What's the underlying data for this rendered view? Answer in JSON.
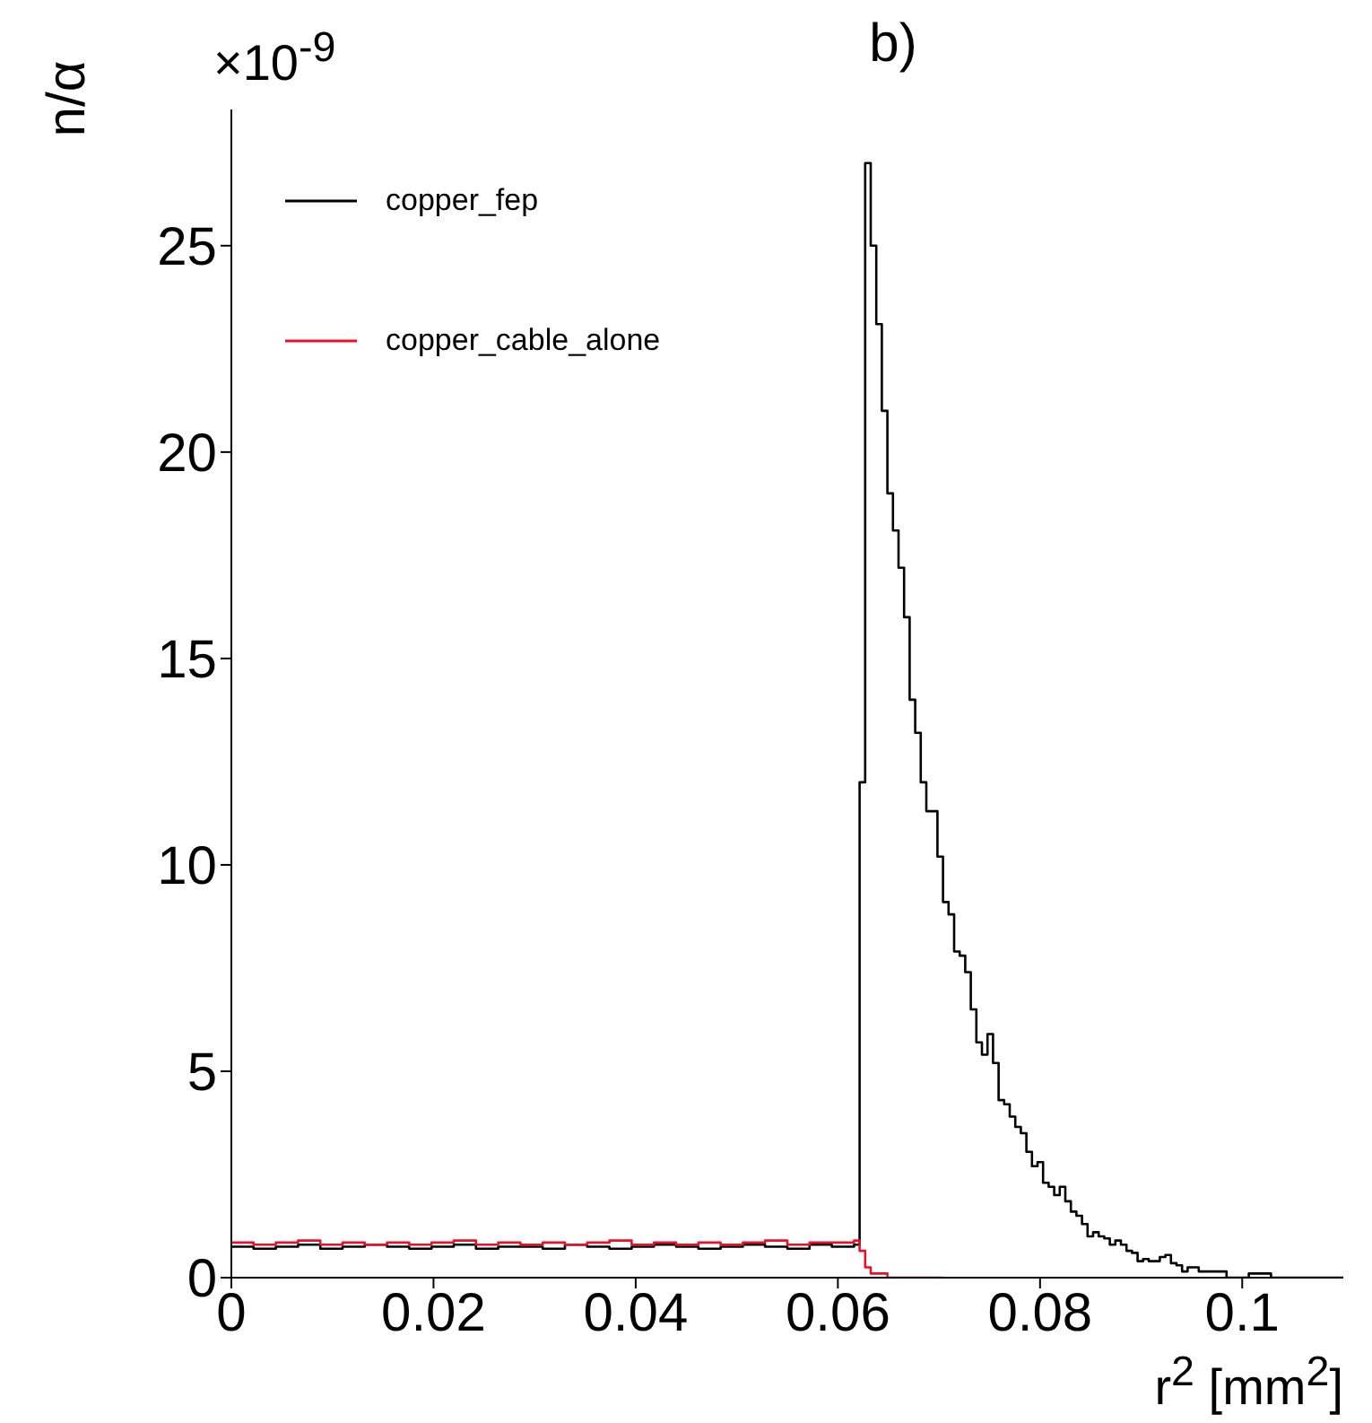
{
  "chart_data": {
    "type": "histogram",
    "title": "b)",
    "xlabel": "r$^{2}$ [mm$^{2}$]",
    "ylabel": "n/α",
    "annotations": [
      "×10$^{-9}$"
    ],
    "bins": [
      0,
      0.0022,
      0.0044,
      0.0066,
      0.0088,
      0.011,
      0.0132,
      0.0154,
      0.0176,
      0.0198,
      0.022,
      0.0242,
      0.0264,
      0.0286,
      0.0308,
      0.033,
      0.0352,
      0.0374,
      0.0396,
      0.0418,
      0.044,
      0.0462,
      0.0484,
      0.0506,
      0.0528,
      0.055,
      0.0572,
      0.0594,
      0.0616,
      0.06215,
      0.0627,
      0.06325,
      0.0638,
      0.06435,
      0.0649,
      0.06545,
      0.066,
      0.06655,
      0.0671,
      0.06765,
      0.0682,
      0.06875,
      0.0693,
      0.06985,
      0.0704,
      0.07095,
      0.0715,
      0.07205,
      0.0726,
      0.07315,
      0.0737,
      0.07425,
      0.0748,
      0.07535,
      0.0759,
      0.07645,
      0.077,
      0.07755,
      0.0781,
      0.07865,
      0.0792,
      0.07975,
      0.0803,
      0.08085,
      0.0814,
      0.08195,
      0.0825,
      0.08305,
      0.0836,
      0.08415,
      0.0847,
      0.08525,
      0.0858,
      0.08635,
      0.0869,
      0.08745,
      0.088,
      0.08855,
      0.0891,
      0.08965,
      0.0902,
      0.09075,
      0.0913,
      0.09185,
      0.0924,
      0.09295,
      0.0935,
      0.09405,
      0.0946,
      0.09515,
      0.0957,
      0.09625,
      0.0968,
      0.09735,
      0.0979,
      0.09845,
      0.099,
      0.09955,
      0.1001,
      0.10065,
      0.1012,
      0.10175,
      0.1023,
      0.10285,
      0.11
    ],
    "series": [
      {
        "name": "copper_fep",
        "color": "#000000",
        "values": [
          0.75,
          0.7,
          0.75,
          0.8,
          0.7,
          0.75,
          0.8,
          0.75,
          0.7,
          0.75,
          0.8,
          0.7,
          0.75,
          0.75,
          0.7,
          0.8,
          0.75,
          0.7,
          0.75,
          0.8,
          0.75,
          0.7,
          0.75,
          0.8,
          0.75,
          0.7,
          0.8,
          0.75,
          0.8,
          12.0,
          27.0,
          25.0,
          23.1,
          21.0,
          19.0,
          18.1,
          17.2,
          16.0,
          14.0,
          13.2,
          12.0,
          11.3,
          11.3,
          10.2,
          9.1,
          8.8,
          7.9,
          7.8,
          7.4,
          6.5,
          5.7,
          5.4,
          5.9,
          5.2,
          4.3,
          4.2,
          3.9,
          3.65,
          3.5,
          3.05,
          2.7,
          2.8,
          2.3,
          2.2,
          2.0,
          2.2,
          1.85,
          1.6,
          1.5,
          1.3,
          1.0,
          1.1,
          1.0,
          0.95,
          0.8,
          0.9,
          0.8,
          0.65,
          0.6,
          0.4,
          0.45,
          0.4,
          0.4,
          0.5,
          0.55,
          0.35,
          0.3,
          0.15,
          0.25,
          0.25,
          0.15,
          0.15,
          0.15,
          0.15,
          0.15,
          0,
          0,
          0,
          0,
          0.1,
          0.1,
          0.1,
          0.1,
          0
        ]
      },
      {
        "name": "copper_cable_alone",
        "color": "#e8102a",
        "bins": [
          0,
          0.0022,
          0.0044,
          0.0066,
          0.0088,
          0.011,
          0.0132,
          0.0154,
          0.0176,
          0.0198,
          0.022,
          0.0242,
          0.0264,
          0.0286,
          0.0308,
          0.033,
          0.0352,
          0.0374,
          0.0396,
          0.0418,
          0.044,
          0.0462,
          0.0484,
          0.0506,
          0.0528,
          0.055,
          0.0572,
          0.0594,
          0.0616,
          0.06215,
          0.0627,
          0.06325,
          0.0638,
          0.06435,
          0.0649,
          0.06545,
          0.066,
          0.06655,
          0.0671,
          0.06765,
          0.0682,
          0.06875,
          0.0693,
          0.06985,
          0.0704
        ],
        "values": [
          0.85,
          0.8,
          0.85,
          0.9,
          0.8,
          0.85,
          0.8,
          0.85,
          0.8,
          0.85,
          0.9,
          0.8,
          0.85,
          0.8,
          0.85,
          0.8,
          0.85,
          0.9,
          0.8,
          0.85,
          0.8,
          0.85,
          0.8,
          0.85,
          0.9,
          0.8,
          0.85,
          0.85,
          0.9,
          0.65,
          0.25,
          0.1,
          0.1,
          0.1,
          0,
          0,
          0,
          0,
          0,
          0,
          0,
          0,
          0,
          0
        ]
      }
    ],
    "xlim": [
      0,
      0.11
    ],
    "xticks": [
      0,
      0.02,
      0.04,
      0.06,
      0.08,
      0.1
    ],
    "ylim": [
      0,
      28.3
    ],
    "yticks": [
      0,
      5,
      10,
      15,
      20,
      25
    ],
    "legend": "top left",
    "grid": false
  }
}
